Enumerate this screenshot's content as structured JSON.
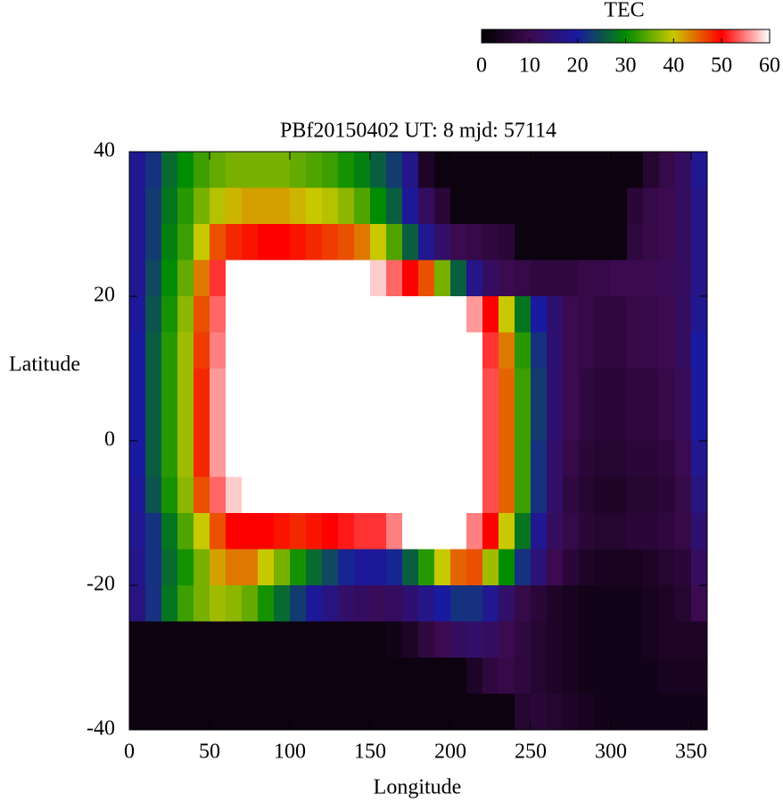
{
  "chart_data": {
    "type": "heatmap",
    "title": "PBf20150402  UT: 8  mjd: 57114",
    "xlabel": "Longitude",
    "ylabel": "Latitude",
    "xlim": [
      0,
      360
    ],
    "ylim": [
      -40,
      40
    ],
    "xticks": [
      0,
      50,
      100,
      150,
      200,
      250,
      300,
      350
    ],
    "yticks": [
      40,
      20,
      0,
      -20,
      -40
    ],
    "colorbar": {
      "label": "TEC",
      "lim": [
        0,
        60
      ],
      "ticks": [
        0,
        10,
        20,
        30,
        40,
        50,
        60
      ],
      "colors": [
        "#000000",
        "#3c0a50",
        "#1a1aa0",
        "#008c00",
        "#c8c800",
        "#ff0000",
        "#ffffff"
      ]
    },
    "x": [
      5,
      15,
      25,
      35,
      45,
      55,
      65,
      75,
      85,
      95,
      105,
      115,
      125,
      135,
      145,
      155,
      165,
      175,
      185,
      195,
      205,
      215,
      225,
      235,
      245,
      255,
      265,
      275,
      285,
      295,
      305,
      315,
      325,
      335,
      345,
      355
    ],
    "y": [
      37.5,
      32.5,
      27.5,
      22.5,
      17.5,
      12.5,
      7.5,
      2.5,
      -2.5,
      -7.5,
      -12.5,
      -17.5,
      -22.5,
      -27.5,
      -32.5,
      -37.5
    ],
    "z": [
      [
        18,
        22,
        27,
        30,
        33,
        35,
        36,
        36,
        36,
        36,
        35,
        34,
        33,
        31,
        29,
        26,
        23,
        17,
        5,
        2,
        2,
        2,
        2,
        2,
        2,
        2,
        2,
        2,
        2,
        2,
        2,
        2,
        6,
        9,
        12,
        18
      ],
      [
        18,
        23,
        28,
        32,
        36,
        39,
        41,
        42,
        42,
        42,
        41,
        40,
        39,
        37,
        34,
        30,
        26,
        19,
        12,
        7,
        2,
        2,
        2,
        2,
        2,
        2,
        2,
        2,
        2,
        2,
        2,
        7,
        9,
        10,
        12,
        17
      ],
      [
        18,
        23,
        29,
        33,
        40,
        46,
        48,
        49,
        50,
        50,
        49,
        48,
        47,
        46,
        44,
        40,
        34,
        26,
        18,
        13,
        10,
        9,
        8,
        7,
        2,
        2,
        2,
        2,
        2,
        2,
        2,
        8,
        9,
        10,
        12,
        17
      ],
      [
        18,
        24,
        30,
        35,
        44,
        52,
        60,
        60,
        60,
        60,
        60,
        60,
        60,
        60,
        60,
        58,
        54,
        50,
        46,
        36,
        26,
        17,
        12,
        10,
        9,
        8,
        8,
        8,
        9,
        9,
        10,
        10,
        10,
        11,
        12,
        17
      ],
      [
        19,
        25,
        31,
        37,
        46,
        54,
        60,
        60,
        60,
        60,
        60,
        60,
        60,
        60,
        60,
        60,
        60,
        60,
        60,
        60,
        60,
        56,
        50,
        40,
        28,
        20,
        14,
        10,
        9,
        8,
        8,
        9,
        9,
        10,
        12,
        18
      ],
      [
        20,
        26,
        32,
        38,
        47,
        55,
        60,
        60,
        60,
        60,
        60,
        60,
        60,
        60,
        60,
        60,
        60,
        60,
        60,
        60,
        60,
        60,
        52,
        44,
        32,
        22,
        14,
        10,
        9,
        8,
        8,
        9,
        9,
        10,
        12,
        20
      ],
      [
        20,
        26,
        32,
        38,
        48,
        56,
        60,
        60,
        60,
        60,
        60,
        60,
        60,
        60,
        60,
        60,
        60,
        60,
        60,
        60,
        60,
        60,
        53,
        45,
        33,
        23,
        14,
        10,
        8,
        7,
        7,
        8,
        8,
        9,
        11,
        20
      ],
      [
        20,
        26,
        32,
        38,
        48,
        56,
        60,
        60,
        60,
        60,
        60,
        60,
        60,
        60,
        60,
        60,
        60,
        60,
        60,
        60,
        60,
        60,
        53,
        45,
        33,
        23,
        14,
        10,
        8,
        7,
        7,
        8,
        8,
        9,
        11,
        20
      ],
      [
        20,
        26,
        32,
        38,
        48,
        56,
        60,
        60,
        60,
        60,
        60,
        60,
        60,
        60,
        60,
        60,
        60,
        60,
        60,
        60,
        60,
        60,
        53,
        45,
        33,
        22,
        13,
        9,
        7,
        6,
        6,
        7,
        7,
        8,
        10,
        18
      ],
      [
        19,
        25,
        31,
        37,
        46,
        54,
        58,
        60,
        60,
        60,
        60,
        60,
        60,
        60,
        60,
        60,
        60,
        60,
        60,
        60,
        60,
        60,
        53,
        45,
        33,
        22,
        13,
        8,
        6,
        5,
        5,
        6,
        6,
        7,
        9,
        16
      ],
      [
        18,
        22,
        28,
        34,
        40,
        46,
        50,
        50,
        50,
        49,
        48,
        49,
        50,
        51,
        52,
        52,
        55,
        60,
        60,
        60,
        60,
        55,
        50,
        40,
        28,
        18,
        12,
        9,
        7,
        6,
        6,
        7,
        7,
        8,
        9,
        14
      ],
      [
        17,
        22,
        27,
        31,
        36,
        42,
        44,
        44,
        40,
        36,
        31,
        27,
        24,
        21,
        19,
        19,
        21,
        26,
        32,
        40,
        45,
        46,
        38,
        30,
        22,
        15,
        10,
        7,
        5,
        4,
        4,
        4,
        5,
        6,
        7,
        12
      ],
      [
        16,
        22,
        28,
        33,
        36,
        38,
        37,
        35,
        31,
        27,
        23,
        19,
        16,
        13,
        12,
        11,
        12,
        14,
        17,
        20,
        22,
        22,
        18,
        13,
        9,
        7,
        5,
        4,
        3,
        3,
        3,
        3,
        4,
        5,
        6,
        10
      ],
      [
        2,
        2,
        2,
        2,
        2,
        2,
        2,
        2,
        2,
        2,
        2,
        2,
        2,
        2,
        2,
        2,
        3,
        5,
        8,
        10,
        12,
        13,
        12,
        10,
        8,
        6,
        5,
        4,
        3,
        3,
        3,
        3,
        4,
        5,
        5,
        5
      ],
      [
        2,
        2,
        2,
        2,
        2,
        2,
        2,
        2,
        2,
        2,
        2,
        2,
        2,
        2,
        2,
        2,
        2,
        2,
        2,
        2,
        2,
        5,
        8,
        9,
        8,
        6,
        5,
        4,
        3,
        3,
        3,
        3,
        3,
        4,
        4,
        4
      ],
      [
        2,
        2,
        2,
        2,
        2,
        2,
        2,
        2,
        2,
        2,
        2,
        2,
        2,
        2,
        2,
        2,
        2,
        2,
        2,
        2,
        2,
        2,
        2,
        2,
        6,
        7,
        6,
        5,
        4,
        3,
        3,
        3,
        3,
        3,
        3,
        3
      ]
    ]
  }
}
